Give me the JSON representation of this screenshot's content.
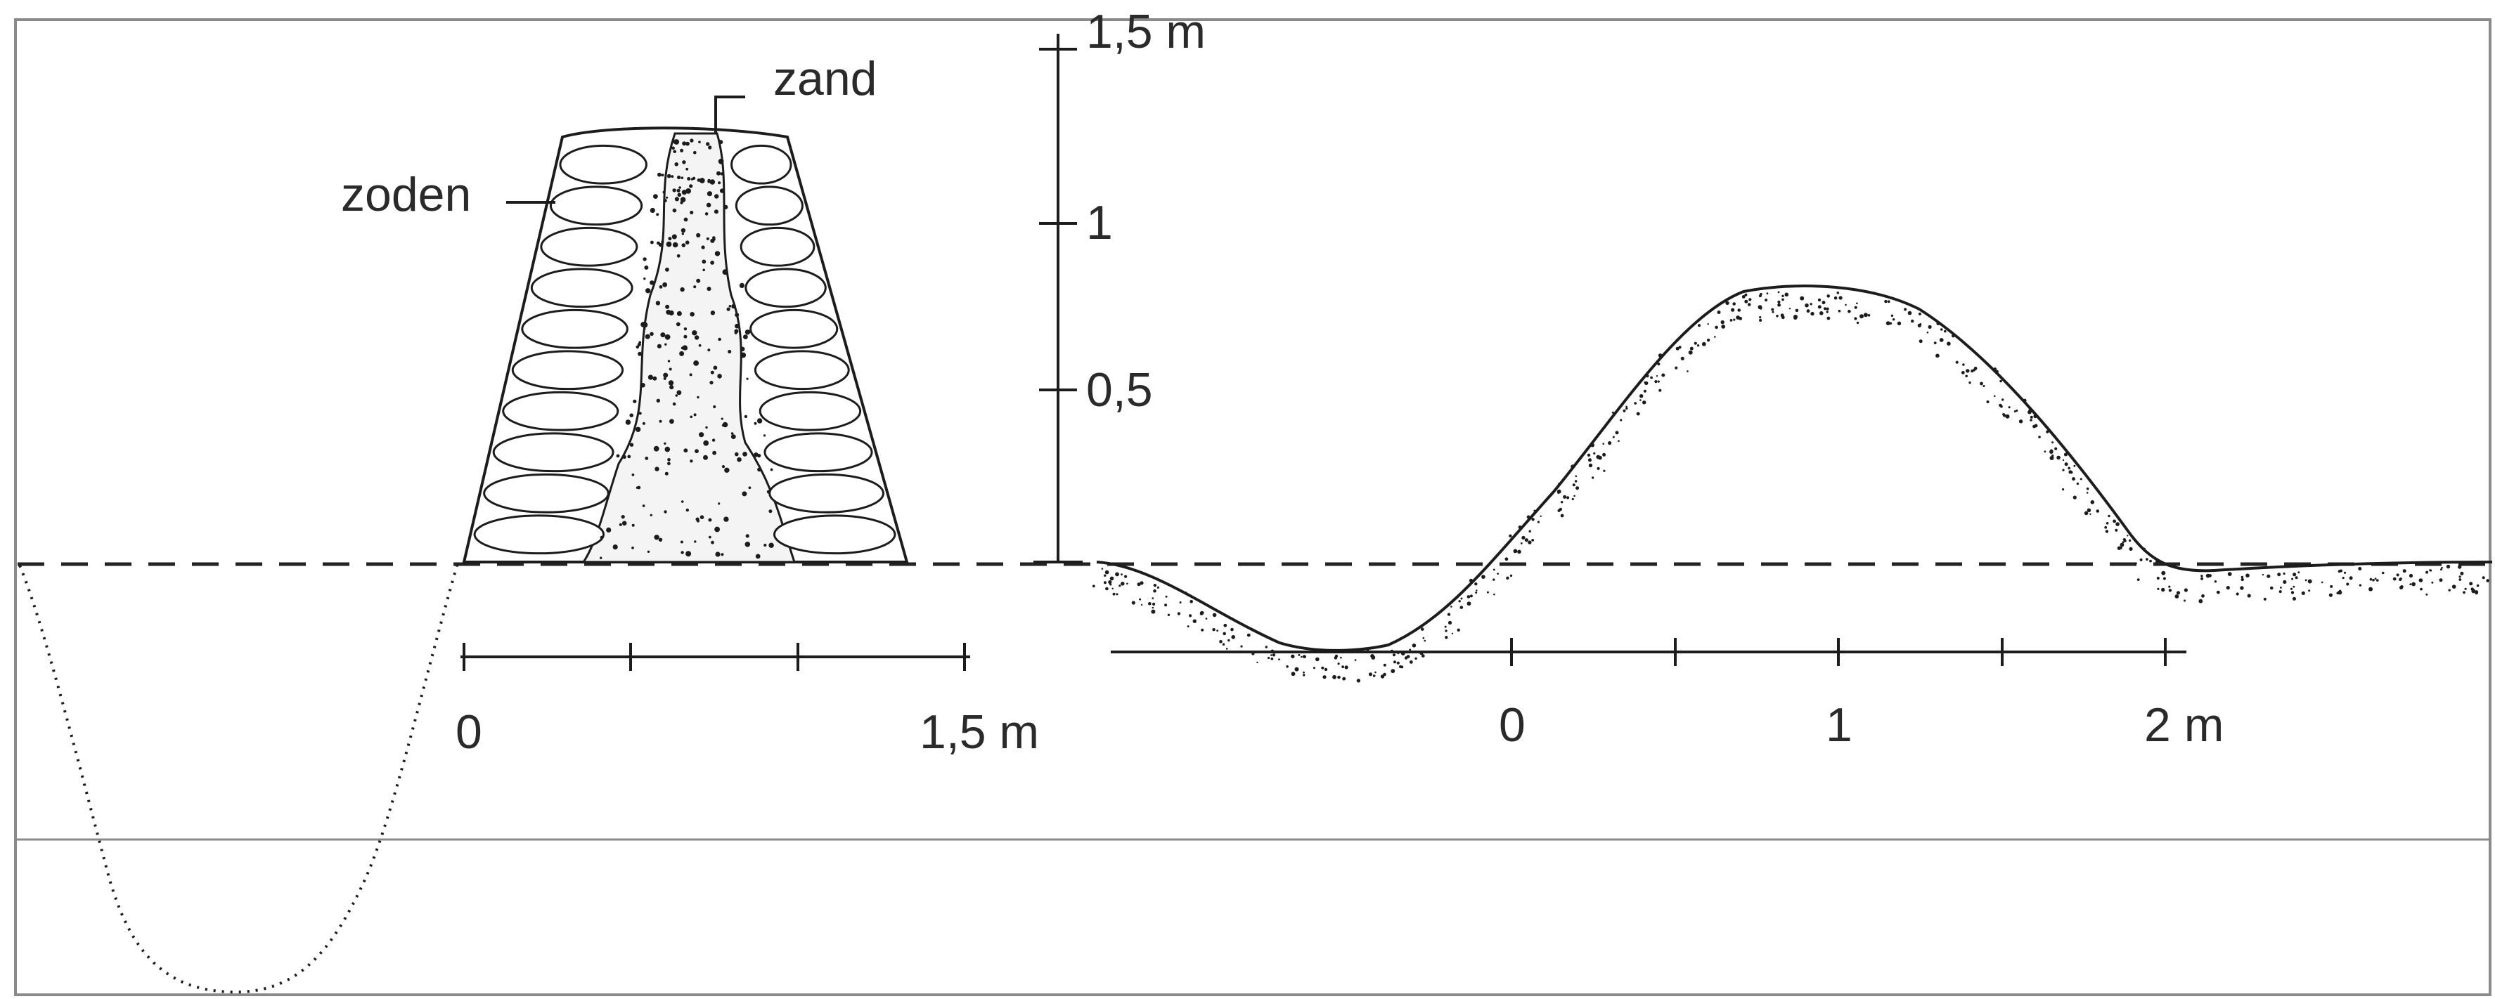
{
  "wall_section": {
    "labels": {
      "sand": "zand",
      "sods": "zoden"
    },
    "scale": {
      "start_label": "0",
      "end_label": "1,5 m"
    }
  },
  "height_scale": {
    "ticks": [
      {
        "value": 1.5,
        "label": "1,5 m"
      },
      {
        "value": 1.0,
        "label": "1"
      },
      {
        "value": 0.5,
        "label": "0,5"
      }
    ]
  },
  "bank_section": {
    "scale": {
      "labels": [
        "0",
        "1",
        "2 m"
      ]
    }
  },
  "colors": {
    "ink": "#1c1c1c",
    "paper": "#ffffff",
    "border": "#8a8a8a"
  }
}
